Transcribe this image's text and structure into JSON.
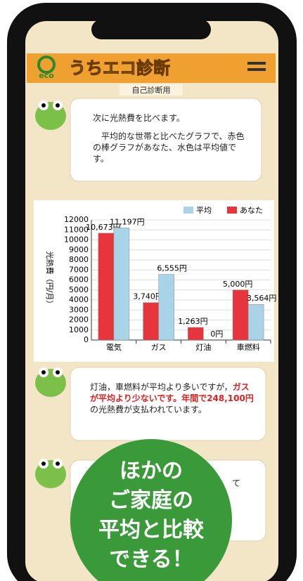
{
  "header": {
    "logo": "eco",
    "title": "うちエコ診断",
    "subtitle": "自己診断用"
  },
  "bubble1": {
    "lines": [
      "次に光熱費を比べます。",
      "平均的な世帯と比べたグラフで、赤色の棒グラフがあなた、水色は平均値です。"
    ]
  },
  "chart_data": {
    "type": "bar",
    "ylabel": "光熱費（円/月）",
    "categories": [
      "電気",
      "ガス",
      "灯油",
      "車燃料"
    ],
    "series": [
      {
        "name": "あなた",
        "color": "#e8343c",
        "values": [
          10673,
          3740,
          1263,
          5000
        ],
        "value_labels": [
          "10,673円",
          "3,740円",
          "1,263円",
          "5,000円"
        ]
      },
      {
        "name": "平均",
        "color": "#a9d3e6",
        "values": [
          11197,
          6555,
          0,
          3564
        ],
        "value_labels": [
          "11,197円",
          "6,555円",
          "0円",
          "3,564円"
        ]
      }
    ],
    "ylim": [
      0,
      12000
    ],
    "yticks": [
      0,
      1000,
      2000,
      3000,
      4000,
      5000,
      6000,
      7000,
      8000,
      9000,
      10000,
      11000,
      12000
    ],
    "grid": true,
    "legend": "top-right"
  },
  "bubble2": {
    "segments": [
      {
        "text": "灯油，車燃料が平均より多いですが，",
        "highlight": false
      },
      {
        "text": "ガスが平均より少ないです。",
        "highlight": true
      },
      {
        "text": "年間で248,100円",
        "highlight": true
      },
      {
        "text": "の光熱費が支払われています。",
        "highlight": false
      }
    ]
  },
  "bubble3": {
    "text": "て"
  },
  "badge": {
    "lines": [
      "ほかの",
      "ご家庭の",
      "平均と比較",
      "できる！"
    ]
  }
}
